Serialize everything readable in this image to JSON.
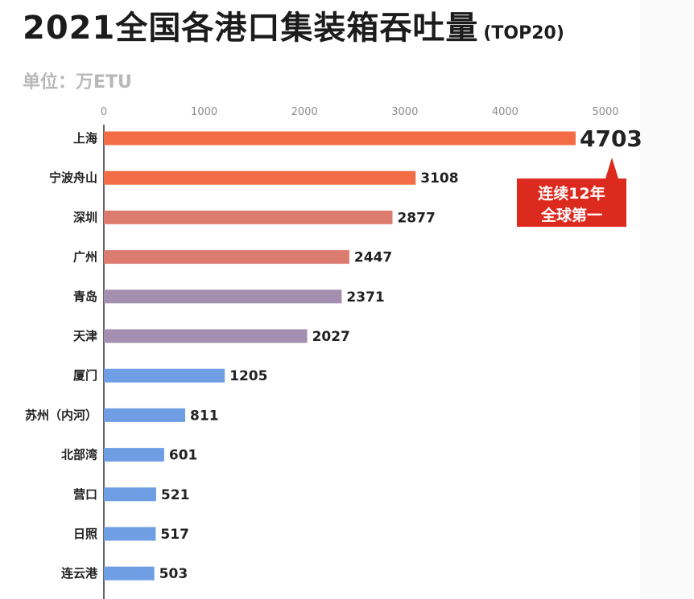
{
  "header": {
    "title": "2021全国各港口集装箱吞吐量",
    "title_suffix": "(TOP20)",
    "unit": "单位：万ETU"
  },
  "callout": {
    "line1": "连续12年",
    "line2": "全球第一",
    "color": "#dd2a1f"
  },
  "chart_data": {
    "type": "bar",
    "orientation": "horizontal",
    "categories": [
      "上海",
      "宁波舟山",
      "深圳",
      "广州",
      "青岛",
      "天津",
      "厦门",
      "苏州（内河）",
      "北部湾",
      "营口",
      "日照",
      "连云港"
    ],
    "values": [
      4703,
      3108,
      2877,
      2447,
      2371,
      2027,
      1205,
      811,
      601,
      521,
      517,
      503
    ],
    "xlim": [
      0,
      5000
    ],
    "xticks": [
      0,
      1000,
      2000,
      3000,
      4000,
      5000
    ],
    "axis_position": "top",
    "grid": false,
    "bar_colors": [
      "#f26d45",
      "#f26d45",
      "#dc7b70",
      "#dc7b70",
      "#a58fb1",
      "#a58fb1",
      "#6f9ee4",
      "#6f9ee4",
      "#6f9ee4",
      "#6f9ee4",
      "#6f9ee4",
      "#6f9ee4"
    ]
  }
}
